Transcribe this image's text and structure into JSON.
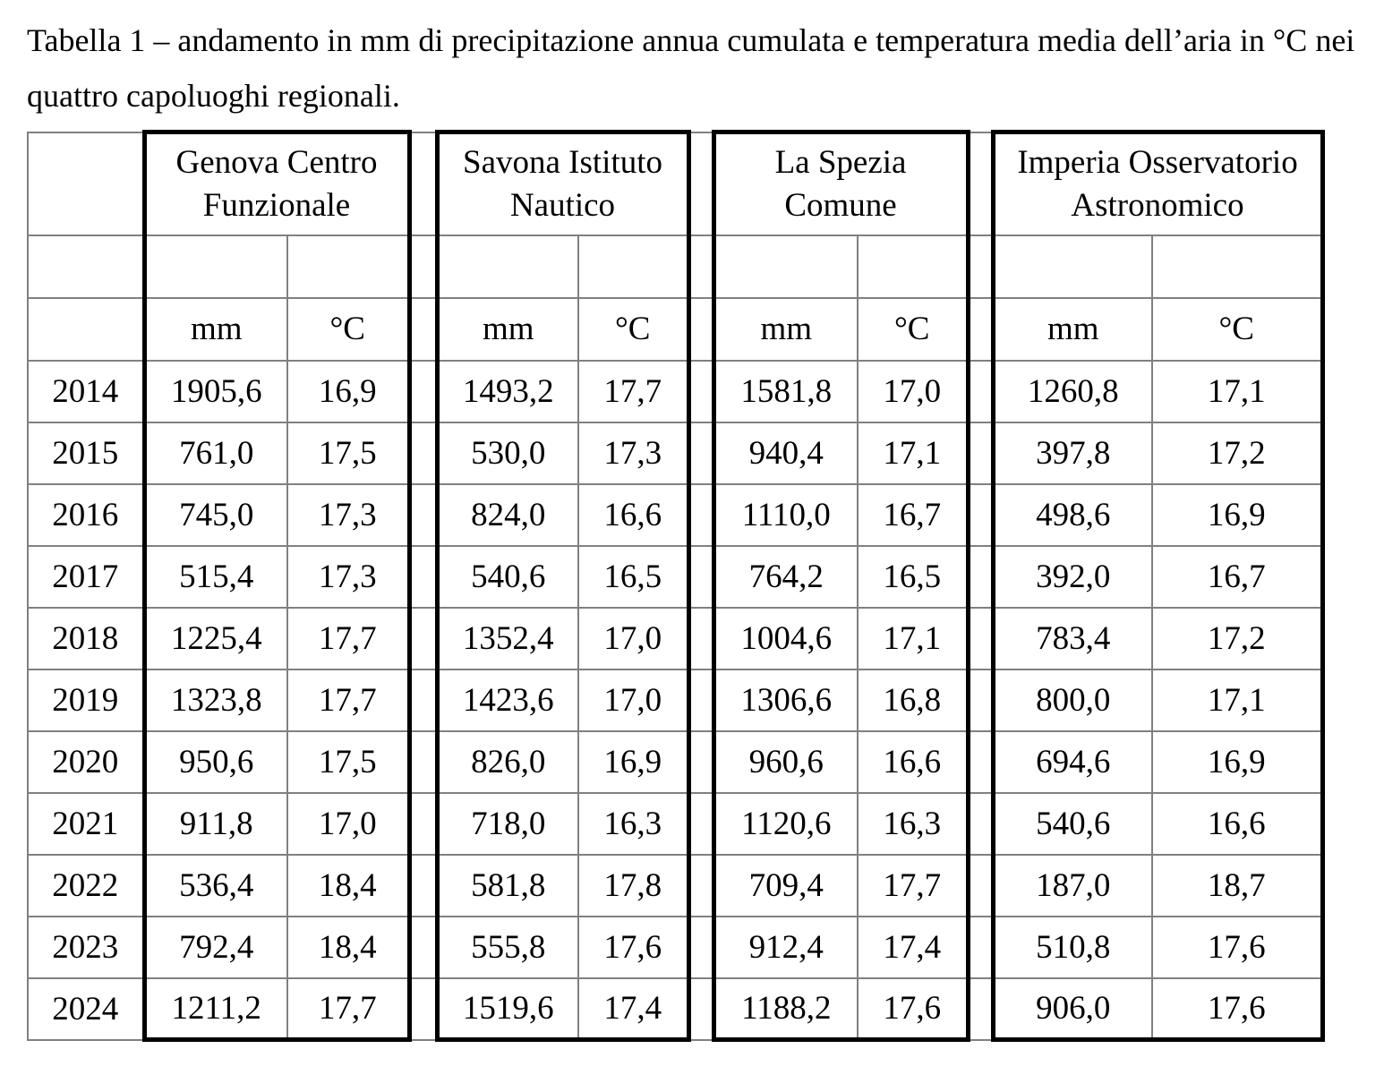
{
  "caption": "Tabella 1 – andamento in mm di precipitazione annua cumulata e temperatura media dell’aria in °C nei\nquattro capoluoghi regionali.",
  "table": {
    "units": {
      "precip": "mm",
      "temp": "°C"
    },
    "years": [
      "2014",
      "2015",
      "2016",
      "2017",
      "2018",
      "2019",
      "2020",
      "2021",
      "2022",
      "2023",
      "2024"
    ],
    "stations": [
      {
        "name": "Genova Centro\nFunzionale",
        "mm": [
          "1905,6",
          "761,0",
          "745,0",
          "515,4",
          "1225,4",
          "1323,8",
          "950,6",
          "911,8",
          "536,4",
          "792,4",
          "1211,2"
        ],
        "temp": [
          "16,9",
          "17,5",
          "17,3",
          "17,3",
          "17,7",
          "17,7",
          "17,5",
          "17,0",
          "18,4",
          "18,4",
          "17,7"
        ]
      },
      {
        "name": "Savona Istituto\nNautico",
        "mm": [
          "1493,2",
          "530,0",
          "824,0",
          "540,6",
          "1352,4",
          "1423,6",
          "826,0",
          "718,0",
          "581,8",
          "555,8",
          "1519,6"
        ],
        "temp": [
          "17,7",
          "17,3",
          "16,6",
          "16,5",
          "17,0",
          "17,0",
          "16,9",
          "16,3",
          "17,8",
          "17,6",
          "17,4"
        ]
      },
      {
        "name": "La Spezia\nComune",
        "mm": [
          "1581,8",
          "940,4",
          "1110,0",
          "764,2",
          "1004,6",
          "1306,6",
          "960,6",
          "1120,6",
          "709,4",
          "912,4",
          "1188,2"
        ],
        "temp": [
          "17,0",
          "17,1",
          "16,7",
          "16,5",
          "17,1",
          "16,8",
          "16,6",
          "16,3",
          "17,7",
          "17,4",
          "17,6"
        ]
      },
      {
        "name": "Imperia Osservatorio\nAstronomico",
        "mm": [
          "1260,8",
          "397,8",
          "498,6",
          "392,0",
          "783,4",
          "800,0",
          "694,6",
          "540,6",
          "187,0",
          "510,8",
          "906,0"
        ],
        "temp": [
          "17,1",
          "17,2",
          "16,9",
          "16,7",
          "17,2",
          "17,1",
          "16,9",
          "16,6",
          "18,7",
          "17,6",
          "17,6"
        ]
      }
    ]
  }
}
